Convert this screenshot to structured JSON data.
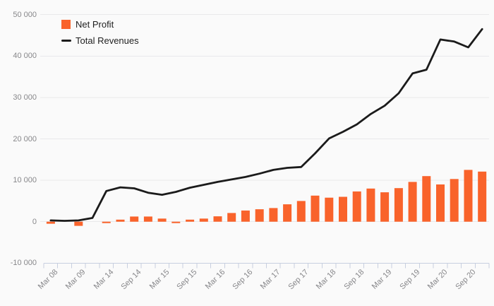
{
  "chart_data": {
    "type": "combo",
    "title": "",
    "categories": [
      "Mar 08",
      "",
      "Mar 09",
      "",
      "Mar 14",
      "",
      "Sep 14",
      "",
      "Mar 15",
      "",
      "Sep 15",
      "",
      "Mar 16",
      "",
      "Sep 16",
      "",
      "Mar 17",
      "",
      "Sep 17",
      "",
      "Mar 18",
      "",
      "Sep 18",
      "",
      "Mar 19",
      "",
      "Sep 19",
      "",
      "Mar 20",
      "",
      "Sep 20",
      ""
    ],
    "series": [
      {
        "name": "Net Profit",
        "type": "bar",
        "color": "#f9632b",
        "values": [
          -500,
          0,
          -1000,
          0,
          -200,
          500,
          1250,
          1250,
          750,
          -300,
          500,
          750,
          1300,
          2100,
          2700,
          3000,
          3300,
          4200,
          5000,
          6300,
          5800,
          6000,
          7300,
          8000,
          7100,
          8100,
          9600,
          11000,
          9000,
          10300,
          12500,
          12100
        ]
      },
      {
        "name": "Total Revenues",
        "type": "line",
        "color": "#1b1b1b",
        "values": [
          300,
          200,
          300,
          900,
          7400,
          8300,
          8050,
          7000,
          6500,
          7200,
          8200,
          8900,
          9600,
          10200,
          10800,
          11600,
          12500,
          13000,
          13200,
          16500,
          20100,
          21700,
          23500,
          26000,
          28000,
          31000,
          35800,
          36700,
          44000,
          43500,
          42100,
          46500
        ]
      }
    ],
    "yticks": {
      "values": [
        50000,
        40000,
        30000,
        20000,
        10000,
        0,
        -10000
      ],
      "labels": [
        "50 000",
        "40 000",
        "30 000",
        "20 000",
        "10 000",
        "0",
        "-10 000"
      ]
    },
    "ylim": [
      -10000,
      50000
    ],
    "grid": true,
    "legend_position": "top-left"
  },
  "legend": {
    "items": [
      {
        "label": "Net Profit",
        "color": "#f9632b",
        "marker": "square"
      },
      {
        "label": "Total Revenues",
        "color": "#1b1b1b",
        "marker": "line"
      }
    ]
  },
  "colors": {
    "background": "#fafafa",
    "grid": "#e9e9eb",
    "axis": "#c8cfdf",
    "tick_text": "#87878a",
    "legend_text": "#1f1f1f",
    "bar": "#f9632b",
    "line": "#1b1b1b"
  }
}
